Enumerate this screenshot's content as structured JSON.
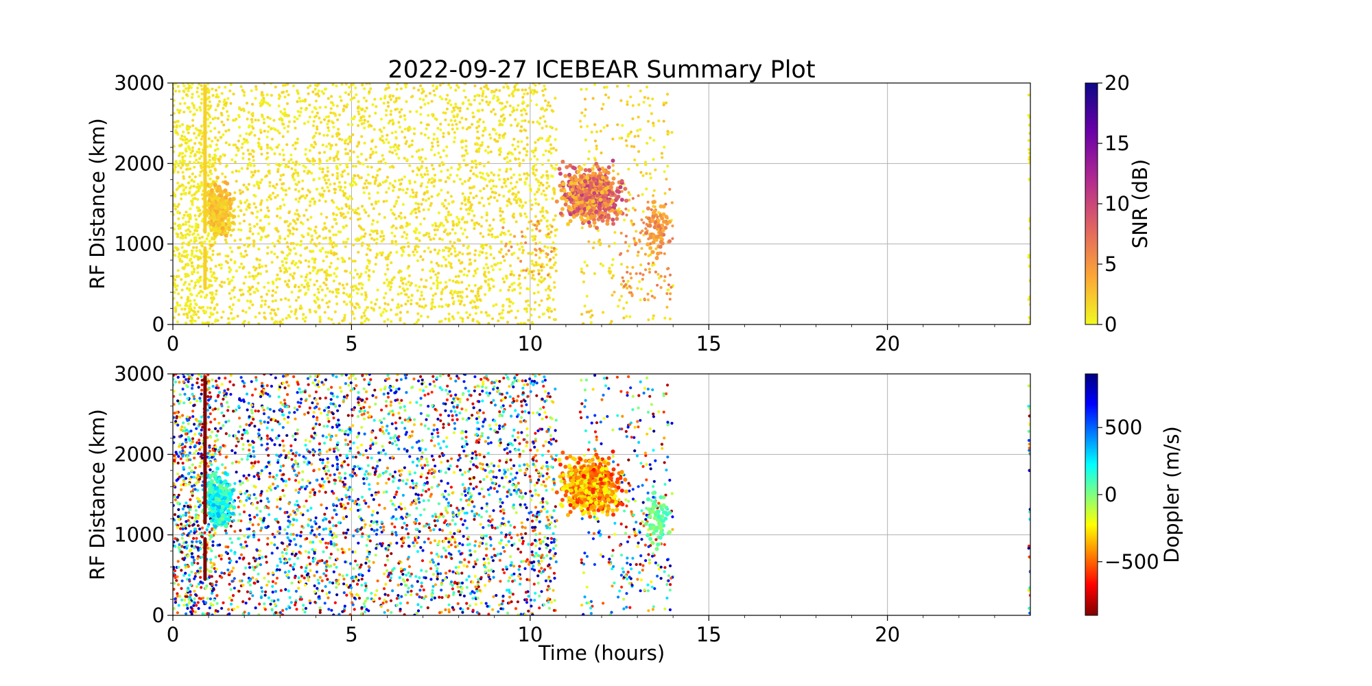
{
  "chart_data": {
    "type": "scatter",
    "title": "2022-09-27 ICEBEAR Summary Plot",
    "panels": [
      {
        "name": "snr",
        "ylabel": "RF Distance (km)",
        "xlim": [
          0,
          24
        ],
        "ylim": [
          0,
          3000
        ],
        "xticks": [
          0,
          5,
          10,
          15,
          20
        ],
        "yticks": [
          0,
          1000,
          2000,
          3000
        ],
        "grid": true,
        "colorbar": {
          "label": "SNR (dB)",
          "range": [
            0,
            20
          ],
          "ticks": [
            0,
            5,
            10,
            15,
            20
          ],
          "colormap": "plasma_r",
          "stops": [
            "#f0f921",
            "#fca636",
            "#e16462",
            "#b12a90",
            "#6a00a8",
            "#0d0887"
          ]
        }
      },
      {
        "name": "doppler",
        "ylabel": "RF Distance (km)",
        "xlabel": "Time (hours)",
        "xlim": [
          0,
          24
        ],
        "ylim": [
          0,
          3000
        ],
        "xticks": [
          0,
          5,
          10,
          15,
          20
        ],
        "yticks": [
          0,
          1000,
          2000,
          3000
        ],
        "grid": true,
        "colorbar": {
          "label": "Doppler (m/s)",
          "range": [
            -900,
            900
          ],
          "ticks": [
            -500,
            0,
            500
          ],
          "tick_labels": [
            "−500",
            "0",
            "500"
          ],
          "colormap": "jet_r",
          "stops": [
            "#800000",
            "#ff0000",
            "#ff8000",
            "#ffff00",
            "#80ff80",
            "#00ffff",
            "#0080ff",
            "#0000ff",
            "#000080"
          ]
        }
      }
    ],
    "regions": [
      {
        "x": [
          0.0,
          1.2
        ],
        "y": [
          0,
          3000
        ],
        "density": 700,
        "snr": [
          0,
          1.5
        ]
      },
      {
        "x": [
          1.2,
          10.75
        ],
        "y": [
          0,
          3000
        ],
        "density": 2900,
        "snr": [
          0,
          2
        ]
      },
      {
        "x": [
          11.4,
          14.0
        ],
        "y": [
          0,
          3000
        ],
        "density": 260,
        "snr": [
          0,
          3
        ]
      },
      {
        "x": [
          12.5,
          14.0
        ],
        "y": [
          300,
          1700
        ],
        "density": 90,
        "snr": [
          4,
          7
        ]
      },
      {
        "x": [
          9.2,
          10.75
        ],
        "y": [
          600,
          1300
        ],
        "density": 40,
        "snr": [
          3,
          6
        ]
      },
      {
        "x": [
          23.95,
          24.0
        ],
        "y": [
          0,
          2900
        ],
        "density": 30,
        "snr": [
          0,
          1
        ]
      }
    ],
    "streaks": [
      {
        "x": 0.9,
        "y": [
          450,
          950
        ],
        "snr": 2,
        "doppler": -900
      },
      {
        "x": 0.9,
        "y": [
          1150,
          2950
        ],
        "snr": 2,
        "doppler": -900
      }
    ],
    "clusters": [
      {
        "x": [
          0.85,
          1.75
        ],
        "y": [
          950,
          1850
        ],
        "density": 280,
        "snr": [
          1,
          4
        ],
        "doppler": [
          0,
          350
        ]
      },
      {
        "x": [
          10.7,
          12.7
        ],
        "y": [
          1150,
          2050
        ],
        "density": 700,
        "snr": [
          2,
          11
        ],
        "doppler": [
          -650,
          -150
        ]
      },
      {
        "x": [
          13.1,
          14.0
        ],
        "y": [
          700,
          1700
        ],
        "density": 70,
        "snr": [
          3,
          7
        ],
        "doppler": [
          -50,
          150
        ]
      }
    ]
  }
}
